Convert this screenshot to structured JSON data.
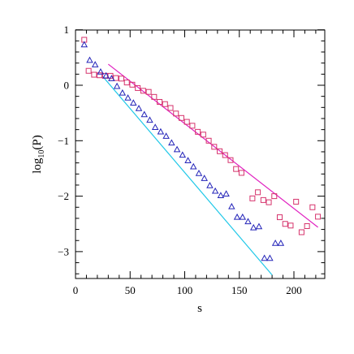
{
  "chart_data": {
    "type": "scatter",
    "xlabel": "s",
    "ylabel_main": "log",
    "ylabel_sub": "10",
    "ylabel_rest": "(P)",
    "xlim": [
      0,
      230
    ],
    "ylim": [
      -3.45,
      1.0
    ],
    "xticks": [
      0,
      50,
      100,
      150,
      200
    ],
    "yticks": [
      1,
      0,
      -1,
      -2,
      -3
    ],
    "xtick_labels": [
      "0",
      "50",
      "100",
      "150",
      "200"
    ],
    "ytick_labels": [
      "1",
      "0",
      "−1",
      "−2",
      "−3"
    ],
    "grid": false,
    "series": [
      {
        "marker": "square",
        "color": "#d6336c",
        "points": [
          [
            8,
            0.82
          ],
          [
            12,
            0.26
          ],
          [
            17,
            0.19
          ],
          [
            22,
            0.18
          ],
          [
            27,
            0.17
          ],
          [
            32,
            0.17
          ],
          [
            37,
            0.13
          ],
          [
            42,
            0.12
          ],
          [
            47,
            0.05
          ],
          [
            52,
            0.01
          ],
          [
            57,
            -0.05
          ],
          [
            62,
            -0.1
          ],
          [
            67,
            -0.12
          ],
          [
            72,
            -0.21
          ],
          [
            77,
            -0.3
          ],
          [
            82,
            -0.34
          ],
          [
            87,
            -0.41
          ],
          [
            92,
            -0.51
          ],
          [
            97,
            -0.59
          ],
          [
            102,
            -0.66
          ],
          [
            107,
            -0.73
          ],
          [
            112,
            -0.84
          ],
          [
            117,
            -0.89
          ],
          [
            122,
            -1.0
          ],
          [
            127,
            -1.11
          ],
          [
            132,
            -1.19
          ],
          [
            137,
            -1.26
          ],
          [
            142,
            -1.35
          ],
          [
            147,
            -1.51
          ],
          [
            152,
            -1.58
          ],
          [
            162,
            -2.04
          ],
          [
            167,
            -1.93
          ],
          [
            172,
            -2.07
          ],
          [
            177,
            -2.11
          ],
          [
            182,
            -2.0
          ],
          [
            187,
            -2.38
          ],
          [
            192,
            -2.5
          ],
          [
            197,
            -2.53
          ],
          [
            202,
            -2.1
          ],
          [
            207,
            -2.65
          ],
          [
            212,
            -2.54
          ],
          [
            217,
            -2.2
          ],
          [
            222,
            -2.37
          ]
        ]
      },
      {
        "marker": "triangle",
        "color": "#2323b8",
        "points": [
          [
            8,
            0.73
          ],
          [
            13,
            0.45
          ],
          [
            18,
            0.37
          ],
          [
            23,
            0.24
          ],
          [
            28,
            0.17
          ],
          [
            33,
            0.12
          ],
          [
            38,
            -0.02
          ],
          [
            43,
            -0.14
          ],
          [
            48,
            -0.23
          ],
          [
            53,
            -0.32
          ],
          [
            58,
            -0.42
          ],
          [
            63,
            -0.53
          ],
          [
            68,
            -0.63
          ],
          [
            73,
            -0.76
          ],
          [
            78,
            -0.84
          ],
          [
            83,
            -0.92
          ],
          [
            88,
            -1.04
          ],
          [
            93,
            -1.16
          ],
          [
            98,
            -1.26
          ],
          [
            103,
            -1.36
          ],
          [
            108,
            -1.47
          ],
          [
            113,
            -1.59
          ],
          [
            118,
            -1.68
          ],
          [
            123,
            -1.81
          ],
          [
            128,
            -1.91
          ],
          [
            133,
            -1.99
          ],
          [
            138,
            -1.96
          ],
          [
            143,
            -2.19
          ],
          [
            148,
            -2.38
          ],
          [
            153,
            -2.38
          ],
          [
            158,
            -2.46
          ],
          [
            163,
            -2.57
          ],
          [
            168,
            -2.55
          ],
          [
            173,
            -3.12
          ],
          [
            178,
            -3.12
          ],
          [
            183,
            -2.85
          ],
          [
            188,
            -2.85
          ]
        ]
      }
    ],
    "fit_lines": [
      {
        "color": "#e020c0",
        "x": [
          30,
          222
        ],
        "y": [
          0.38,
          -2.56
        ]
      },
      {
        "color": "#20c8e8",
        "x": [
          24,
          180
        ],
        "y": [
          0.18,
          -3.42
        ]
      }
    ]
  }
}
